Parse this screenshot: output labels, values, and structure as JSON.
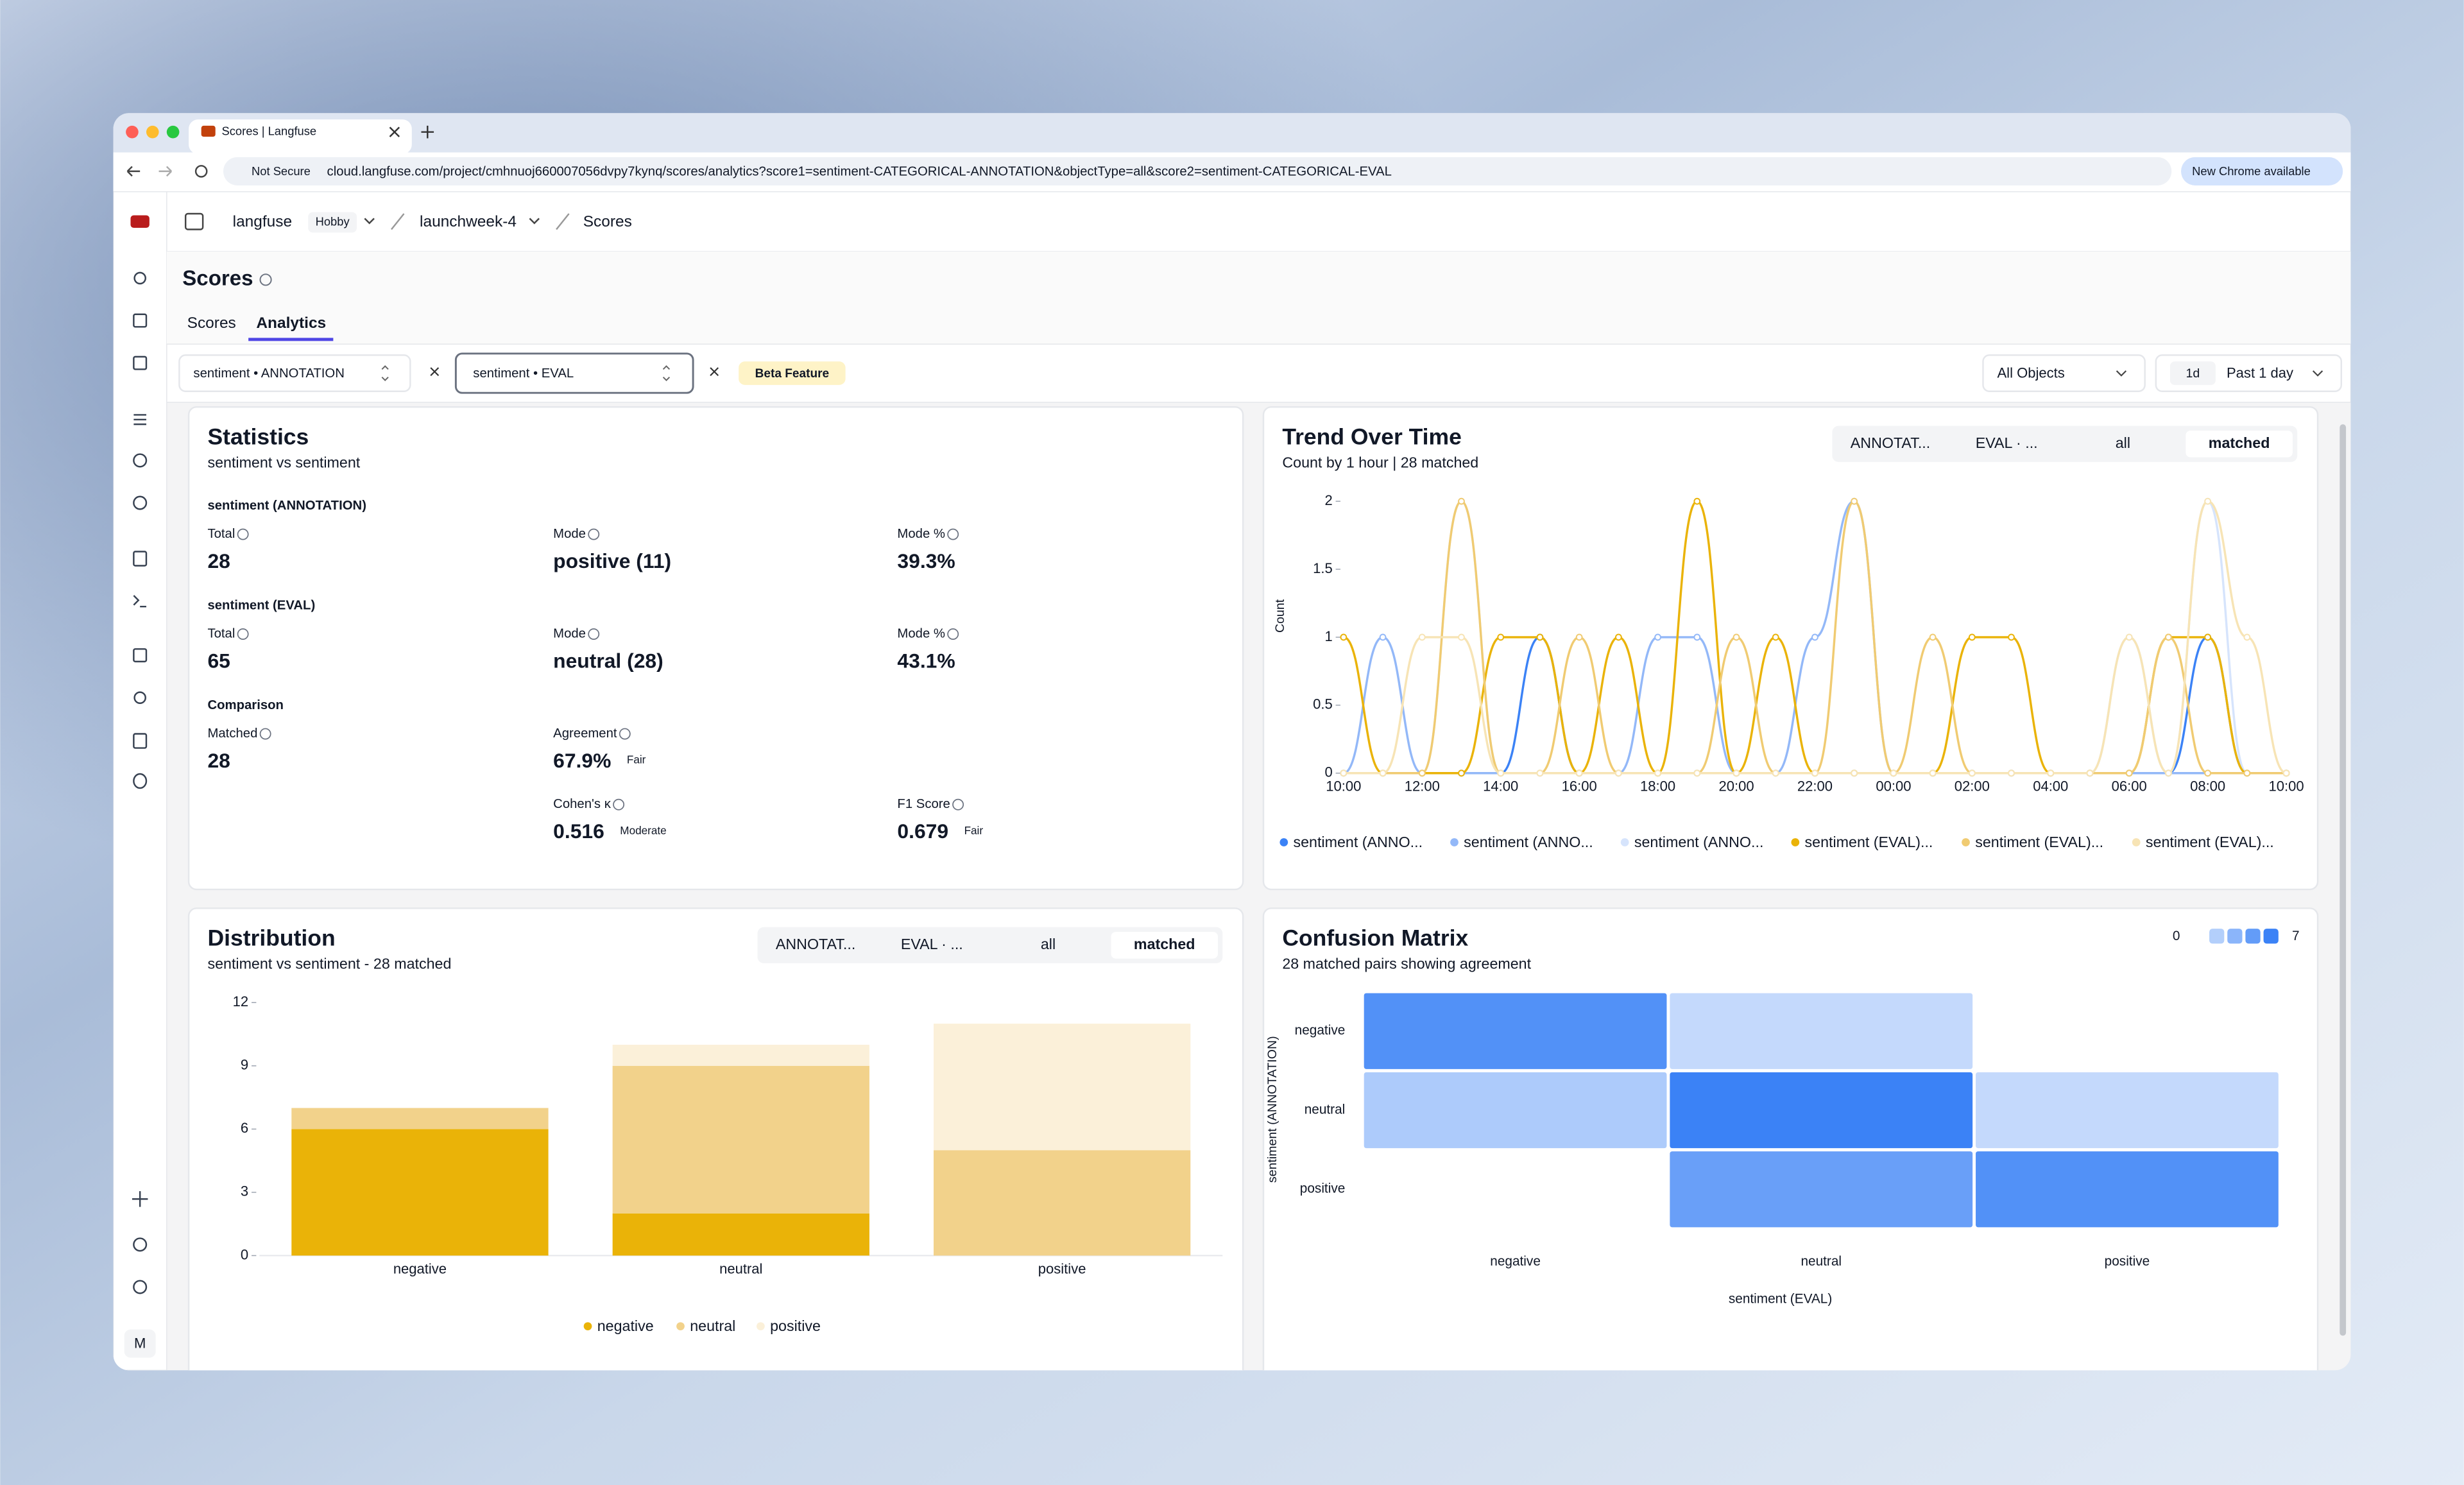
{
  "browser": {
    "tab_title": "Scores | Langfuse",
    "security": "Not Secure",
    "url": "cloud.langfuse.com/project/cmhnuoj660007056dvpy7kynq/scores/analytics?score1=sentiment-CATEGORICAL-ANNOTATION&objectType=all&score2=sentiment-CATEGORICAL-EVAL",
    "update_button": "New Chrome available"
  },
  "breadcrumbs": {
    "org": "langfuse",
    "plan": "Hobby",
    "project": "launchweek-4",
    "page": "Scores"
  },
  "sidebar": {
    "avatar": "M"
  },
  "page": {
    "title": "Scores",
    "tabs": [
      "Scores",
      "Analytics"
    ]
  },
  "filters": {
    "score1": "sentiment • ANNOTATION",
    "score2": "sentiment • EVAL",
    "badge": "Beta Feature",
    "object_type": "All Objects",
    "range_short": "1d",
    "range": "Past 1 day"
  },
  "statistics": {
    "title": "Statistics",
    "subtitle": "sentiment vs sentiment",
    "sections": [
      {
        "title": "sentiment (ANNOTATION)",
        "items": [
          {
            "label": "Total",
            "value": 28
          },
          {
            "label": "Mode",
            "value": "positive (11)"
          },
          {
            "label": "Mode %",
            "value": "39.3%"
          }
        ]
      },
      {
        "title": "sentiment (EVAL)",
        "items": [
          {
            "label": "Total",
            "value": 65
          },
          {
            "label": "Mode",
            "value": "neutral (28)"
          },
          {
            "label": "Mode %",
            "value": "43.1%"
          }
        ]
      },
      {
        "title": "Comparison",
        "items": [
          {
            "label": "Matched",
            "value": 28
          },
          {
            "label": "Agreement",
            "value": "67.9%",
            "badge": "Fair"
          },
          {
            "label": "Cohen's κ",
            "value": 0.516,
            "badge": "Moderate"
          },
          {
            "label": "F1 Score",
            "value": 0.679,
            "badge": "Fair"
          }
        ]
      }
    ]
  },
  "trend": {
    "type": "line",
    "title": "Trend Over Time",
    "subtitle": "Count by 1 hour | 28 matched",
    "tabs": [
      "ANNOTAT...",
      "EVAL · ...",
      "all",
      "matched"
    ],
    "active_tab": 3,
    "ylabel": "Count",
    "x": [
      "10:00",
      null,
      "12:00",
      null,
      "14:00",
      null,
      "16:00",
      null,
      "18:00",
      null,
      "20:00",
      null,
      "22:00",
      null,
      "00:00",
      null,
      "02:00",
      null,
      "04:00",
      null,
      "06:00",
      null,
      "08:00",
      null,
      "10:00"
    ],
    "ylim": [
      0,
      2
    ],
    "yticks": [
      0,
      0.5,
      1,
      1.5,
      2
    ],
    "series": [
      {
        "name": "sentiment (ANNO...",
        "color": "#3b82f6",
        "values": [
          0,
          0,
          0,
          0,
          0,
          1,
          0,
          0,
          0,
          0,
          0,
          0,
          0,
          0,
          0,
          0,
          0,
          0,
          0,
          0,
          0,
          0,
          1,
          0,
          0
        ]
      },
      {
        "name": "sentiment (ANNO...",
        "color": "#93b8f8",
        "values": [
          0,
          1,
          0,
          0,
          0,
          0,
          0,
          0,
          1,
          1,
          0,
          0,
          1,
          2,
          0,
          0,
          0,
          0,
          0,
          0,
          0,
          0,
          0,
          0,
          0
        ]
      },
      {
        "name": "sentiment (ANNO...",
        "color": "#d6e4fc",
        "values": [
          0,
          0,
          0,
          2,
          0,
          0,
          0,
          0,
          0,
          0,
          0,
          0,
          0,
          0,
          0,
          0,
          0,
          0,
          0,
          0,
          1,
          0,
          2,
          0,
          0
        ]
      },
      {
        "name": "sentiment (EVAL)...",
        "color": "#eab308",
        "values": [
          1,
          0,
          0,
          0,
          1,
          1,
          0,
          1,
          0,
          2,
          0,
          1,
          0,
          0,
          0,
          0,
          1,
          1,
          0,
          0,
          0,
          1,
          1,
          0,
          0
        ]
      },
      {
        "name": "sentiment (EVAL)...",
        "color": "#f0cb72",
        "values": [
          0,
          0,
          0,
          2,
          0,
          0,
          1,
          0,
          0,
          0,
          1,
          0,
          0,
          2,
          0,
          1,
          0,
          0,
          0,
          0,
          0,
          1,
          0,
          0,
          0
        ]
      },
      {
        "name": "sentiment (EVAL)...",
        "color": "#f7e4b5",
        "values": [
          0,
          0,
          1,
          1,
          0,
          0,
          0,
          0,
          0,
          0,
          0,
          0,
          0,
          0,
          0,
          0,
          0,
          0,
          0,
          0,
          1,
          0,
          2,
          1,
          0
        ]
      }
    ]
  },
  "distribution": {
    "type": "bar",
    "stacked": true,
    "title": "Distribution",
    "subtitle": "sentiment vs sentiment - 28 matched",
    "tabs": [
      "ANNOTAT...",
      "EVAL · ...",
      "all",
      "matched"
    ],
    "active_tab": 3,
    "categories": [
      "negative",
      "neutral",
      "positive"
    ],
    "ylim": [
      0,
      12
    ],
    "yticks": [
      0,
      3,
      6,
      9,
      12
    ],
    "series": [
      {
        "name": "negative",
        "color": "#eab308",
        "values": [
          6,
          2,
          0
        ]
      },
      {
        "name": "neutral",
        "color": "#f2d28b",
        "values": [
          1,
          7,
          5
        ]
      },
      {
        "name": "positive",
        "color": "#fbf0d9",
        "values": [
          0,
          1,
          6
        ]
      }
    ]
  },
  "confusion": {
    "type": "heatmap",
    "title": "Confusion Matrix",
    "subtitle": "28 matched pairs showing agreement",
    "rows": [
      "negative",
      "neutral",
      "positive"
    ],
    "columns": [
      "negative",
      "neutral",
      "positive"
    ],
    "ylabel": "sentiment (ANNOTATION)",
    "xlabel": "sentiment (EVAL)",
    "values": [
      [
        6,
        1,
        0
      ],
      [
        2,
        7,
        1
      ],
      [
        0,
        5,
        6
      ]
    ],
    "scale": [
      0,
      7
    ],
    "colors": [
      "#dbe8fd",
      "#3b82f6"
    ]
  }
}
